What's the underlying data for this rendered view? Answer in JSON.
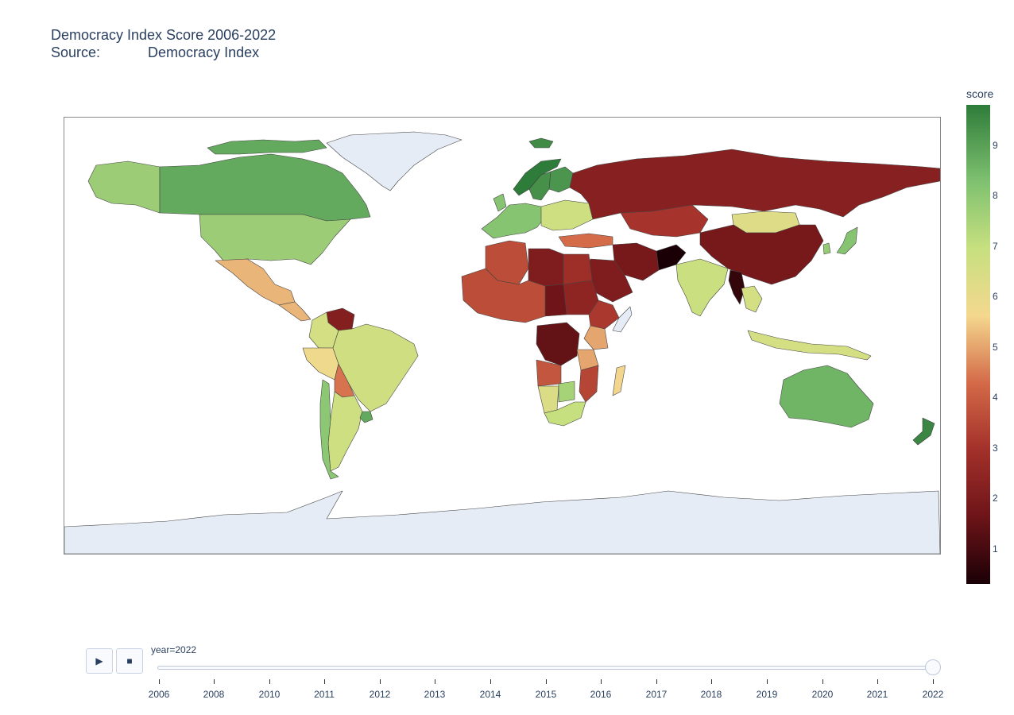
{
  "title": {
    "line1": "Democracy Index Score 2006-2022",
    "line2": "Source:            Democracy Index"
  },
  "colorbar": {
    "title": "score",
    "ticks": [
      "9",
      "8",
      "7",
      "6",
      "5",
      "4",
      "3",
      "2",
      "1"
    ],
    "range": [
      0.3,
      9.8
    ],
    "colors": [
      "#1a0006",
      "#6d1418",
      "#a3302a",
      "#d46a48",
      "#f4d88e",
      "#c7e07f",
      "#7fc170",
      "#2e7c3a"
    ]
  },
  "slider": {
    "current_label": "year=2022",
    "current_year": 2022,
    "years": [
      "2006",
      "2008",
      "2010",
      "2011",
      "2012",
      "2013",
      "2014",
      "2015",
      "2016",
      "2017",
      "2018",
      "2019",
      "2020",
      "2021",
      "2022"
    ]
  },
  "controls": {
    "play_icon": "play-icon",
    "stop_icon": "stop-icon"
  },
  "map": {
    "no_data_color": "#e5ecf6",
    "country_scores": [
      {
        "region": "Canada",
        "score": 8.9
      },
      {
        "region": "United States",
        "score": 7.9
      },
      {
        "region": "Mexico",
        "score": 5.3
      },
      {
        "region": "Greenland",
        "score": null
      },
      {
        "region": "Alaska",
        "score": 7.9
      },
      {
        "region": "Brazil",
        "score": 6.8
      },
      {
        "region": "Argentina",
        "score": 6.9
      },
      {
        "region": "Chile",
        "score": 8.2
      },
      {
        "region": "Venezuela",
        "score": 2.2
      },
      {
        "region": "Colombia",
        "score": 6.7
      },
      {
        "region": "Peru",
        "score": 5.9
      },
      {
        "region": "Bolivia",
        "score": 4.5
      },
      {
        "region": "Uruguay",
        "score": 8.9
      },
      {
        "region": "Norway",
        "score": 9.8
      },
      {
        "region": "Sweden",
        "score": 9.4
      },
      {
        "region": "Finland",
        "score": 9.3
      },
      {
        "region": "Iceland",
        "score": 9.5
      },
      {
        "region": "Western Europe",
        "score": 8.3
      },
      {
        "region": "Eastern Europe",
        "score": 6.9
      },
      {
        "region": "Russia",
        "score": 2.3
      },
      {
        "region": "Kazakhstan",
        "score": 3.1
      },
      {
        "region": "Mongolia",
        "score": 6.4
      },
      {
        "region": "China",
        "score": 1.9
      },
      {
        "region": "India",
        "score": 7.0
      },
      {
        "region": "Afghanistan",
        "score": 0.3
      },
      {
        "region": "Iran",
        "score": 1.9
      },
      {
        "region": "Saudi Arabia",
        "score": 2.1
      },
      {
        "region": "Turkey",
        "score": 4.4
      },
      {
        "region": "Myanmar",
        "score": 0.7
      },
      {
        "region": "Thailand",
        "score": 6.7
      },
      {
        "region": "Indonesia",
        "score": 6.7
      },
      {
        "region": "Japan",
        "score": 8.3
      },
      {
        "region": "South Korea",
        "score": 8.0
      },
      {
        "region": "Australia",
        "score": 8.7
      },
      {
        "region": "New Zealand",
        "score": 9.6
      },
      {
        "region": "Algeria",
        "score": 3.7
      },
      {
        "region": "Libya",
        "score": 2.1
      },
      {
        "region": "Egypt",
        "score": 2.9
      },
      {
        "region": "Sudan",
        "score": 2.5
      },
      {
        "region": "Chad",
        "score": 1.7
      },
      {
        "region": "DR Congo",
        "score": 1.5
      },
      {
        "region": "Ethiopia",
        "score": 3.2
      },
      {
        "region": "Kenya",
        "score": 5.1
      },
      {
        "region": "Tanzania",
        "score": 5.1
      },
      {
        "region": "Angola",
        "score": 3.9
      },
      {
        "region": "Namibia",
        "score": 6.5
      },
      {
        "region": "South Africa",
        "score": 7.1
      },
      {
        "region": "Botswana",
        "score": 7.7
      },
      {
        "region": "Mozambique",
        "score": 3.5
      },
      {
        "region": "Madagascar",
        "score": 5.7
      },
      {
        "region": "Somalia",
        "score": null
      },
      {
        "region": "Antarctica",
        "score": null
      }
    ]
  }
}
